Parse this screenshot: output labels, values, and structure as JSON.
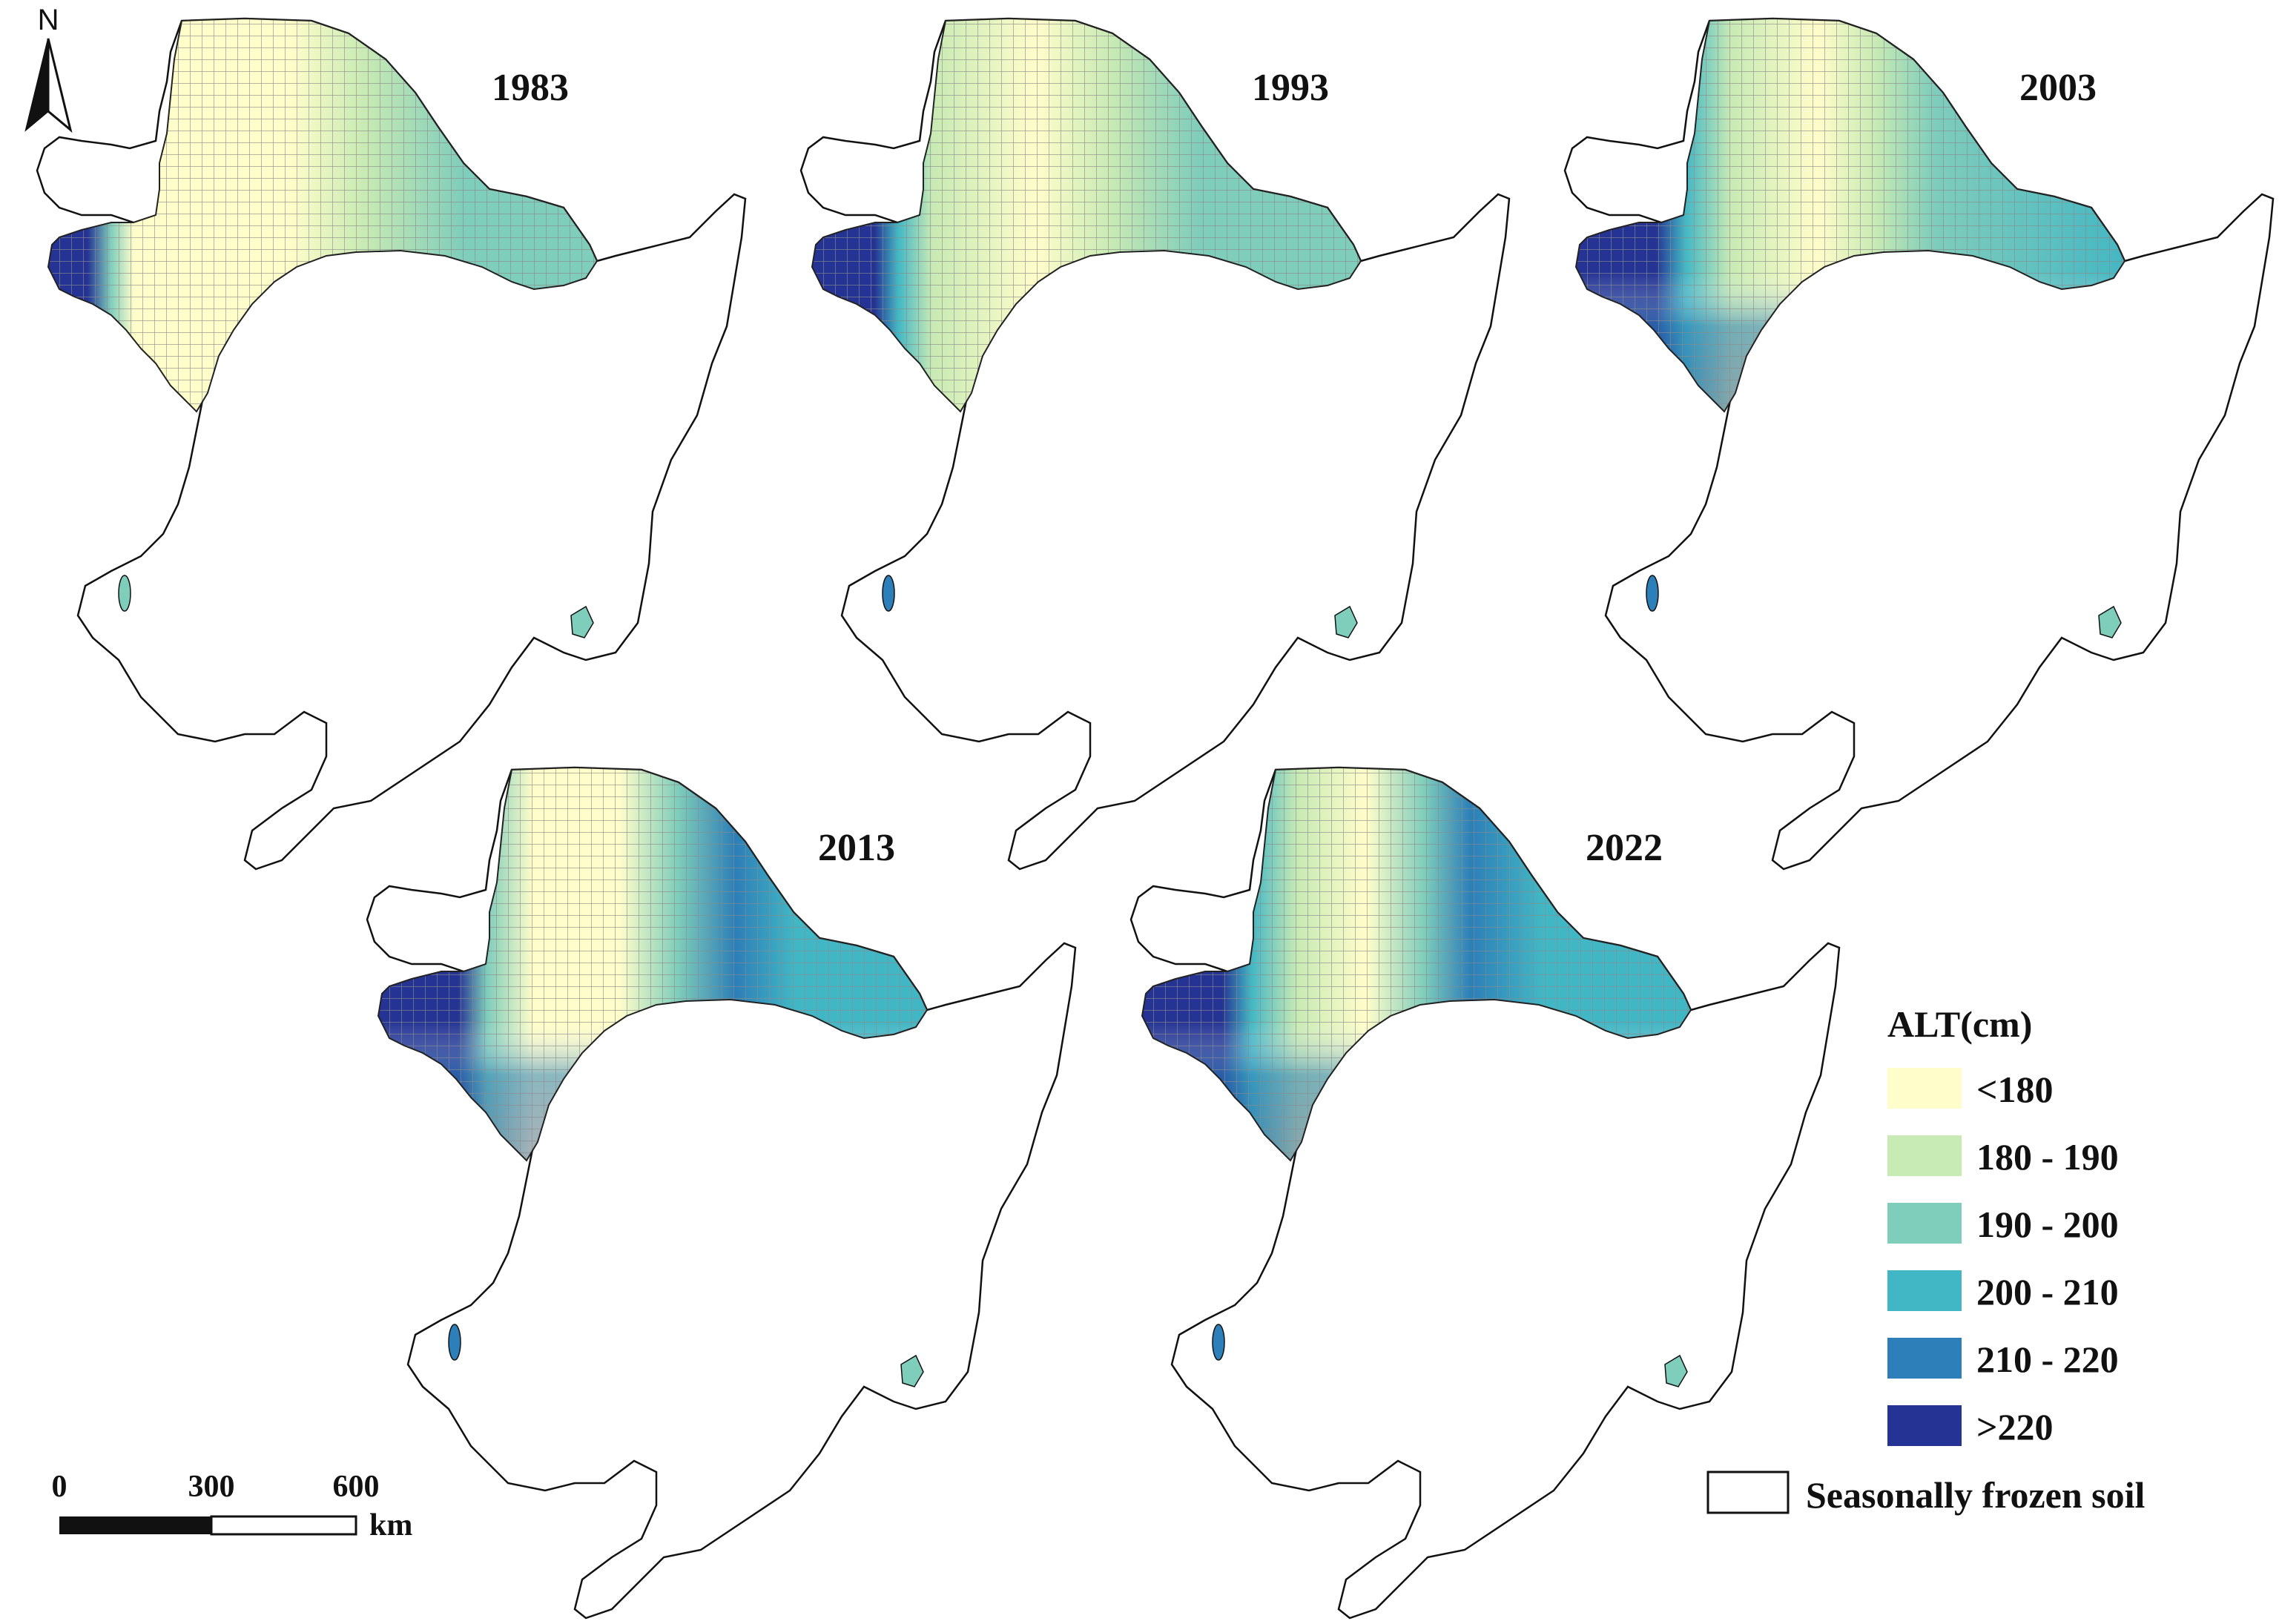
{
  "north_arrow": {
    "label": "N"
  },
  "panels": [
    {
      "year": "1983"
    },
    {
      "year": "1993"
    },
    {
      "year": "2003"
    },
    {
      "year": "2013"
    },
    {
      "year": "2022"
    }
  ],
  "legend": {
    "title": "ALT(cm)",
    "classes": [
      {
        "label": "<180",
        "color": "#FFFDCA"
      },
      {
        "label": "180 - 190",
        "color": "#C8EAB4"
      },
      {
        "label": "190 - 200",
        "color": "#7FCDBB"
      },
      {
        "label": "200 - 210",
        "color": "#41B6C4"
      },
      {
        "label": "210 - 220",
        "color": "#2C7FB8"
      },
      {
        "label": ">220",
        "color": "#253494"
      }
    ],
    "seasonal_label": "Seasonally frozen soil"
  },
  "scale_bar": {
    "ticks": [
      "0",
      "300",
      "600"
    ],
    "unit": "km"
  }
}
